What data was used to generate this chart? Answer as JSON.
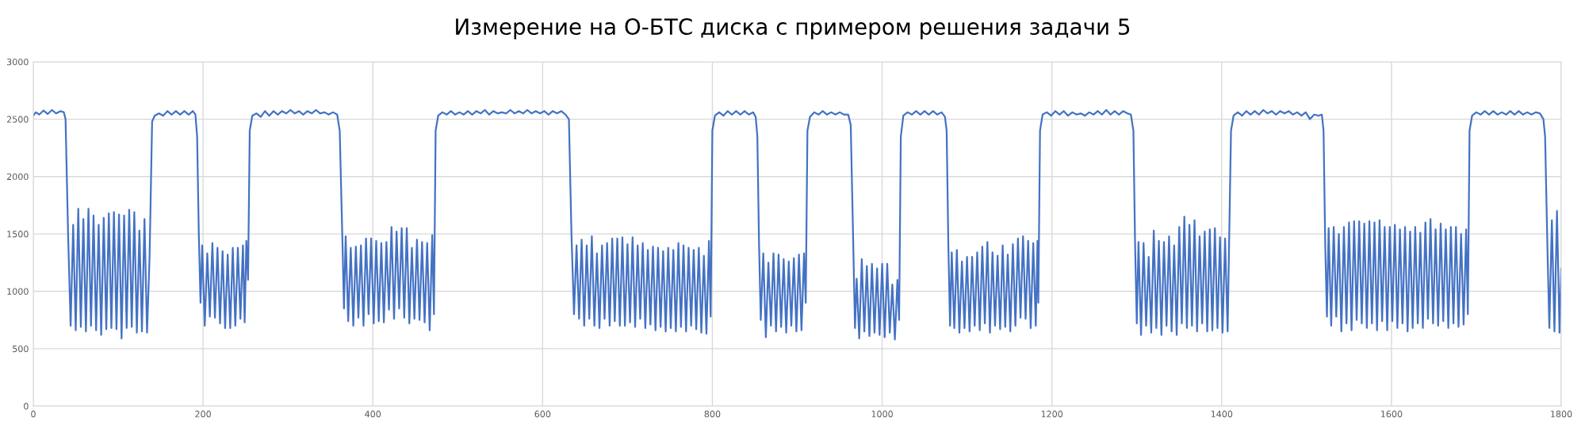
{
  "chart_data": {
    "type": "line",
    "title": "Измерение на О-БТС диска с примером решения задачи 5",
    "x": [
      0,
      3,
      7,
      12,
      17,
      22,
      27,
      32,
      36,
      38,
      41,
      44,
      47,
      50,
      53,
      56,
      59,
      62,
      65,
      68,
      71,
      74,
      77,
      80,
      83,
      86,
      89,
      92,
      95,
      98,
      101,
      104,
      107,
      110,
      113,
      116,
      119,
      122,
      125,
      128,
      131,
      134,
      137,
      140,
      143,
      148,
      153,
      158,
      163,
      168,
      173,
      178,
      183,
      188,
      191,
      193,
      195,
      197,
      199,
      202,
      205,
      208,
      211,
      214,
      217,
      220,
      223,
      226,
      229,
      232,
      235,
      238,
      241,
      244,
      247,
      249,
      251,
      253,
      255,
      258,
      263,
      268,
      273,
      278,
      283,
      288,
      293,
      298,
      303,
      308,
      313,
      318,
      323,
      328,
      333,
      338,
      343,
      348,
      353,
      358,
      361,
      364,
      366,
      368,
      371,
      374,
      377,
      380,
      383,
      386,
      389,
      392,
      395,
      398,
      401,
      404,
      407,
      410,
      413,
      416,
      419,
      422,
      425,
      428,
      431,
      434,
      437,
      440,
      443,
      446,
      449,
      452,
      455,
      458,
      461,
      464,
      467,
      470,
      472,
      474,
      477,
      482,
      487,
      492,
      497,
      502,
      507,
      512,
      517,
      522,
      527,
      532,
      537,
      542,
      547,
      552,
      557,
      562,
      567,
      572,
      577,
      582,
      587,
      592,
      597,
      602,
      607,
      612,
      617,
      622,
      627,
      631,
      634,
      637,
      640,
      643,
      646,
      649,
      652,
      655,
      658,
      661,
      664,
      667,
      670,
      673,
      676,
      679,
      682,
      685,
      688,
      691,
      694,
      697,
      700,
      703,
      706,
      709,
      712,
      715,
      718,
      721,
      724,
      727,
      730,
      733,
      736,
      739,
      742,
      745,
      748,
      751,
      754,
      757,
      760,
      763,
      766,
      769,
      772,
      775,
      778,
      781,
      784,
      787,
      790,
      793,
      796,
      798,
      800,
      803,
      808,
      813,
      818,
      823,
      828,
      833,
      838,
      843,
      848,
      851,
      853,
      855,
      857,
      860,
      863,
      866,
      869,
      872,
      875,
      878,
      881,
      884,
      887,
      890,
      893,
      896,
      899,
      902,
      905,
      908,
      910,
      912,
      915,
      920,
      925,
      930,
      935,
      940,
      945,
      950,
      955,
      960,
      963,
      966,
      968,
      970,
      973,
      976,
      979,
      982,
      985,
      988,
      991,
      994,
      997,
      1000,
      1003,
      1006,
      1009,
      1012,
      1015,
      1018,
      1020,
      1022,
      1025,
      1030,
      1035,
      1040,
      1045,
      1050,
      1055,
      1060,
      1065,
      1070,
      1074,
      1076,
      1078,
      1080,
      1082,
      1085,
      1088,
      1091,
      1094,
      1097,
      1100,
      1103,
      1106,
      1109,
      1112,
      1115,
      1118,
      1121,
      1124,
      1127,
      1130,
      1133,
      1136,
      1139,
      1142,
      1145,
      1148,
      1151,
      1154,
      1157,
      1160,
      1163,
      1166,
      1169,
      1172,
      1175,
      1178,
      1181,
      1183,
      1184,
      1186,
      1189,
      1194,
      1199,
      1204,
      1209,
      1214,
      1219,
      1224,
      1229,
      1234,
      1239,
      1244,
      1249,
      1254,
      1259,
      1264,
      1269,
      1274,
      1279,
      1284,
      1289,
      1293,
      1296,
      1298,
      1300,
      1302,
      1305,
      1308,
      1311,
      1314,
      1317,
      1320,
      1323,
      1326,
      1329,
      1332,
      1335,
      1338,
      1341,
      1344,
      1347,
      1350,
      1353,
      1356,
      1359,
      1362,
      1365,
      1368,
      1371,
      1374,
      1377,
      1380,
      1383,
      1386,
      1389,
      1392,
      1395,
      1398,
      1401,
      1404,
      1407,
      1409,
      1411,
      1414,
      1419,
      1424,
      1429,
      1434,
      1439,
      1444,
      1449,
      1454,
      1459,
      1464,
      1469,
      1474,
      1479,
      1484,
      1489,
      1494,
      1499,
      1504,
      1509,
      1514,
      1518,
      1520,
      1522,
      1524,
      1526,
      1529,
      1532,
      1535,
      1538,
      1541,
      1544,
      1547,
      1550,
      1553,
      1556,
      1559,
      1562,
      1565,
      1568,
      1571,
      1574,
      1577,
      1580,
      1583,
      1586,
      1589,
      1592,
      1595,
      1598,
      1601,
      1604,
      1607,
      1610,
      1613,
      1616,
      1619,
      1622,
      1625,
      1628,
      1631,
      1634,
      1637,
      1640,
      1643,
      1646,
      1649,
      1652,
      1655,
      1658,
      1661,
      1664,
      1667,
      1670,
      1673,
      1676,
      1679,
      1682,
      1685,
      1688,
      1690,
      1692,
      1695,
      1700,
      1705,
      1710,
      1715,
      1720,
      1725,
      1730,
      1735,
      1740,
      1745,
      1750,
      1755,
      1760,
      1765,
      1770,
      1775,
      1779,
      1781,
      1784,
      1786,
      1789,
      1792,
      1795,
      1798,
      1800
    ],
    "series": [
      {
        "color": "#4472c4",
        "values": [
          2530,
          2560,
          2540,
          2575,
          2545,
          2580,
          2550,
          2570,
          2560,
          2500,
          1500,
          700,
          1580,
          660,
          1720,
          690,
          1630,
          650,
          1720,
          700,
          1660,
          660,
          1580,
          620,
          1640,
          670,
          1680,
          680,
          1690,
          670,
          1670,
          590,
          1660,
          680,
          1710,
          690,
          1690,
          640,
          1530,
          650,
          1630,
          640,
          1300,
          2480,
          2530,
          2550,
          2530,
          2570,
          2540,
          2570,
          2540,
          2570,
          2540,
          2570,
          2540,
          2350,
          1500,
          900,
          1400,
          700,
          1330,
          780,
          1420,
          770,
          1380,
          720,
          1350,
          680,
          1320,
          680,
          1380,
          700,
          1380,
          760,
          1400,
          730,
          1440,
          1100,
          2400,
          2530,
          2550,
          2520,
          2570,
          2530,
          2570,
          2540,
          2570,
          2550,
          2580,
          2550,
          2570,
          2540,
          2570,
          2550,
          2580,
          2550,
          2560,
          2540,
          2560,
          2540,
          2400,
          1500,
          850,
          1480,
          740,
          1380,
          700,
          1390,
          770,
          1400,
          700,
          1460,
          800,
          1460,
          720,
          1440,
          740,
          1420,
          730,
          1430,
          840,
          1560,
          760,
          1520,
          850,
          1550,
          770,
          1550,
          720,
          1380,
          760,
          1450,
          750,
          1430,
          730,
          1420,
          660,
          1490,
          800,
          2400,
          2530,
          2560,
          2540,
          2570,
          2540,
          2560,
          2540,
          2570,
          2540,
          2570,
          2550,
          2580,
          2540,
          2570,
          2550,
          2560,
          2550,
          2580,
          2550,
          2570,
          2550,
          2580,
          2550,
          2570,
          2550,
          2570,
          2540,
          2570,
          2550,
          2570,
          2540,
          2500,
          1500,
          800,
          1400,
          760,
          1450,
          700,
          1400,
          760,
          1480,
          700,
          1330,
          680,
          1400,
          760,
          1420,
          700,
          1460,
          740,
          1460,
          700,
          1470,
          700,
          1410,
          730,
          1470,
          690,
          1400,
          760,
          1420,
          680,
          1360,
          710,
          1390,
          660,
          1380,
          690,
          1350,
          650,
          1380,
          680,
          1360,
          650,
          1420,
          690,
          1400,
          650,
          1380,
          700,
          1360,
          670,
          1380,
          640,
          1310,
          630,
          1440,
          780,
          2400,
          2530,
          2560,
          2530,
          2570,
          2540,
          2570,
          2540,
          2570,
          2540,
          2560,
          2520,
          2350,
          1400,
          750,
          1330,
          600,
          1250,
          700,
          1330,
          650,
          1320,
          690,
          1280,
          640,
          1260,
          700,
          1290,
          650,
          1320,
          660,
          1330,
          900,
          2400,
          2520,
          2560,
          2540,
          2570,
          2540,
          2560,
          2540,
          2560,
          2540,
          2540,
          2450,
          1400,
          680,
          1110,
          590,
          1280,
          650,
          1220,
          610,
          1240,
          640,
          1200,
          620,
          1240,
          600,
          1240,
          640,
          1060,
          580,
          1100,
          750,
          2350,
          2530,
          2560,
          2540,
          2570,
          2540,
          2570,
          2540,
          2570,
          2540,
          2560,
          2520,
          2400,
          1400,
          700,
          1340,
          680,
          1360,
          640,
          1260,
          680,
          1300,
          650,
          1300,
          700,
          1340,
          660,
          1390,
          720,
          1430,
          640,
          1340,
          700,
          1310,
          670,
          1400,
          690,
          1320,
          650,
          1410,
          700,
          1460,
          770,
          1480,
          760,
          1440,
          680,
          1420,
          700,
          1440,
          900,
          2400,
          2540,
          2560,
          2530,
          2570,
          2540,
          2570,
          2530,
          2560,
          2540,
          2550,
          2530,
          2560,
          2540,
          2570,
          2540,
          2580,
          2540,
          2570,
          2540,
          2570,
          2550,
          2540,
          2400,
          1400,
          720,
          1430,
          620,
          1420,
          700,
          1300,
          640,
          1530,
          680,
          1440,
          620,
          1430,
          700,
          1480,
          650,
          1400,
          620,
          1560,
          720,
          1650,
          680,
          1580,
          700,
          1620,
          650,
          1480,
          720,
          1520,
          650,
          1540,
          660,
          1550,
          680,
          1470,
          640,
          1460,
          650,
          1530,
          2400,
          2530,
          2560,
          2530,
          2570,
          2540,
          2570,
          2540,
          2580,
          2550,
          2570,
          2540,
          2570,
          2550,
          2570,
          2540,
          2560,
          2530,
          2560,
          2500,
          2540,
          2530,
          2540,
          2400,
          1400,
          780,
          1550,
          700,
          1560,
          780,
          1500,
          650,
          1560,
          720,
          1600,
          660,
          1610,
          750,
          1610,
          720,
          1590,
          680,
          1610,
          720,
          1600,
          660,
          1620,
          740,
          1560,
          660,
          1560,
          740,
          1580,
          680,
          1540,
          720,
          1560,
          650,
          1520,
          680,
          1560,
          720,
          1510,
          680,
          1600,
          760,
          1630,
          720,
          1540,
          700,
          1590,
          740,
          1540,
          680,
          1560,
          720,
          1560,
          690,
          1500,
          710,
          1540,
          800,
          2400,
          2530,
          2560,
          2540,
          2570,
          2540,
          2570,
          2540,
          2560,
          2540,
          2570,
          2540,
          2570,
          2540,
          2560,
          2540,
          2560,
          2550,
          2500,
          2350,
          1300,
          680,
          1620,
          650,
          1700,
          640,
          1200
        ]
      }
    ],
    "xlim": [
      0,
      1800
    ],
    "xticks": [
      0,
      200,
      400,
      600,
      800,
      1000,
      1200,
      1400,
      1600,
      1800
    ],
    "ylim": [
      0,
      3000
    ],
    "yticks": [
      0,
      500,
      1000,
      1500,
      2000,
      2500,
      3000
    ],
    "grid": true
  }
}
